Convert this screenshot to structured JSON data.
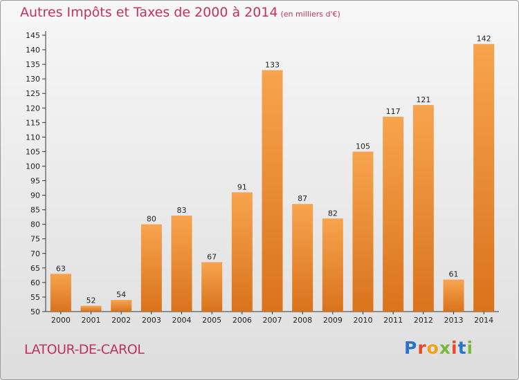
{
  "header": {
    "title": "Autres Impôts et Taxes de 2000 à 2014",
    "unit": "(en milliers d'€)"
  },
  "footer": {
    "commune": "LATOUR-DE-CAROL",
    "logo": "Proxiti"
  },
  "chart_data": {
    "type": "bar",
    "title": "Autres Impôts et Taxes de 2000 à 2014",
    "subtitle": "(en milliers d'€)",
    "xlabel": "",
    "ylabel": "",
    "categories": [
      "2000",
      "2001",
      "2002",
      "2003",
      "2004",
      "2005",
      "2006",
      "2007",
      "2008",
      "2009",
      "2010",
      "2011",
      "2012",
      "2013",
      "2014"
    ],
    "values": [
      63,
      52,
      54,
      80,
      83,
      67,
      91,
      133,
      87,
      82,
      105,
      117,
      121,
      61,
      142
    ],
    "ylim": [
      50,
      145
    ],
    "yticks": [
      50,
      55,
      60,
      65,
      70,
      75,
      80,
      85,
      90,
      95,
      100,
      105,
      110,
      115,
      120,
      125,
      130,
      135,
      140,
      145
    ],
    "grid": false,
    "colors": {
      "bar_light": "#f7a44e",
      "bar_dark": "#d9731c",
      "axis": "#333333"
    }
  }
}
